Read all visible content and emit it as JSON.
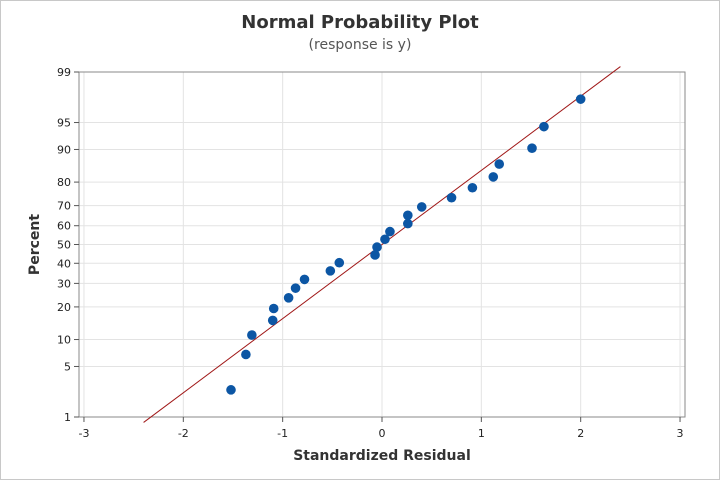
{
  "chart_data": {
    "type": "scatter",
    "title": "Normal Probability Plot",
    "subtitle": "(response is y)",
    "xlabel": "Standardized Residual",
    "ylabel": "Percent",
    "xlim": [
      -3.05,
      3.05
    ],
    "x_ticks": [
      -3,
      -2,
      -1,
      0,
      1,
      2,
      3
    ],
    "y_scale": "normal-probability",
    "ylim": [
      1,
      99
    ],
    "y_ticks": [
      1,
      5,
      10,
      20,
      30,
      40,
      50,
      60,
      70,
      80,
      90,
      95,
      99
    ],
    "grid": true,
    "points": [
      {
        "x": -1.52,
        "y": 2.5
      },
      {
        "x": -1.37,
        "y": 6.9
      },
      {
        "x": -1.31,
        "y": 11.1
      },
      {
        "x": -1.1,
        "y": 15.3
      },
      {
        "x": -1.09,
        "y": 19.4
      },
      {
        "x": -0.94,
        "y": 23.6
      },
      {
        "x": -0.87,
        "y": 27.8
      },
      {
        "x": -0.78,
        "y": 31.9
      },
      {
        "x": -0.52,
        "y": 36.1
      },
      {
        "x": -0.43,
        "y": 40.3
      },
      {
        "x": -0.07,
        "y": 44.4
      },
      {
        "x": -0.05,
        "y": 48.6
      },
      {
        "x": 0.03,
        "y": 52.8
      },
      {
        "x": 0.08,
        "y": 56.9
      },
      {
        "x": 0.26,
        "y": 61.1
      },
      {
        "x": 0.26,
        "y": 65.3
      },
      {
        "x": 0.4,
        "y": 69.4
      },
      {
        "x": 0.7,
        "y": 73.6
      },
      {
        "x": 0.91,
        "y": 77.8
      },
      {
        "x": 1.12,
        "y": 81.9
      },
      {
        "x": 1.18,
        "y": 86.1
      },
      {
        "x": 1.51,
        "y": 90.3
      },
      {
        "x": 1.63,
        "y": 94.4
      },
      {
        "x": 2.0,
        "y": 97.5
      }
    ],
    "fit_line": {
      "x": [
        -2.4,
        2.4
      ],
      "y": [
        0.82,
        99.18
      ]
    },
    "colors": {
      "points": "#0c56a4",
      "fit_line": "#a01818",
      "grid": "#e3e3e3"
    }
  }
}
